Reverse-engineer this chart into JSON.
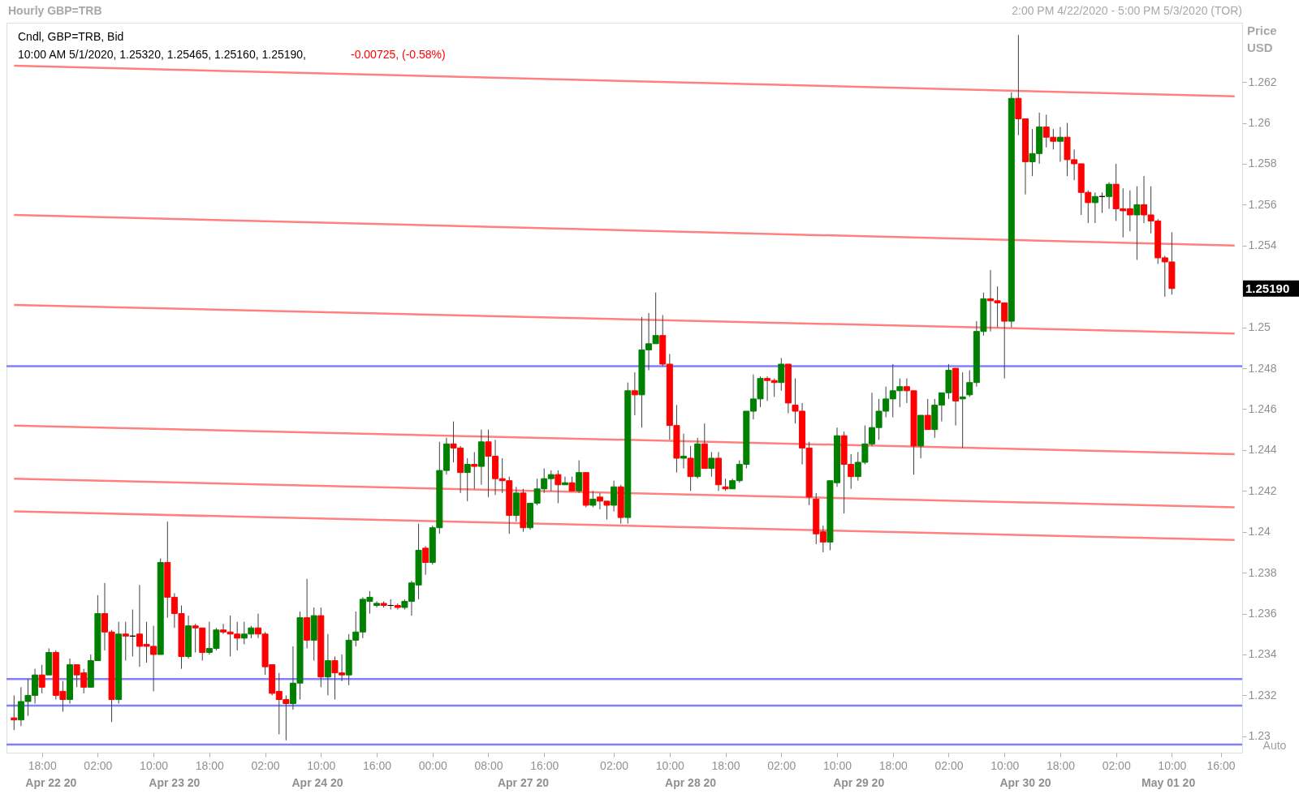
{
  "chart_data": {
    "type": "candlestick",
    "title": "Hourly GBP=TRB",
    "subtitle": "2:00 PM 4/22/2020 - 5:00 PM 5/3/2020 (TOR)",
    "ylabel": "Price USD",
    "categories": [
      null,
      null,
      null,
      null,
      "18:00",
      null,
      null,
      null,
      null,
      null,
      null,
      null,
      "02:00",
      null,
      null,
      null,
      null,
      null,
      null,
      null,
      "10:00",
      null,
      null,
      null,
      null,
      null,
      null,
      null,
      "18:00",
      null,
      null,
      null,
      null,
      null,
      null,
      null,
      "02:00",
      null,
      null,
      null,
      null,
      null,
      null,
      null,
      "10:00",
      null,
      null,
      null,
      null,
      null,
      null,
      null,
      "16:00",
      null,
      null,
      null,
      null,
      null,
      null,
      null,
      "00:00",
      null,
      null,
      null,
      null,
      null,
      null,
      null,
      "08:00",
      null,
      null,
      null,
      null,
      null,
      null,
      null,
      "16:00",
      null,
      null,
      null,
      null,
      null,
      null,
      null,
      null,
      null,
      "02:00",
      null,
      null,
      null,
      null,
      null,
      null,
      null,
      "10:00",
      null,
      null,
      null,
      null,
      null,
      null,
      null,
      "18:00",
      null,
      null,
      null,
      null,
      null,
      null,
      null,
      "02:00",
      null,
      null,
      null,
      null,
      null,
      null,
      null,
      "10:00",
      null,
      null,
      null,
      null,
      null,
      null,
      null,
      "18:00",
      null,
      null,
      null,
      null,
      null,
      null,
      null,
      "02:00",
      null,
      null,
      null,
      null,
      null,
      null,
      null,
      "10:00",
      null,
      null,
      null,
      null,
      null,
      null,
      null,
      "18:00",
      null,
      null,
      null,
      null,
      null,
      null,
      null,
      "02:00",
      null,
      null,
      null,
      null,
      null,
      null,
      null,
      "10:00",
      null,
      null,
      null,
      null,
      null,
      null,
      "16:00",
      null,
      null
    ],
    "ohlc": [
      [
        1.2309,
        1.232,
        1.2303,
        1.2308
      ],
      [
        1.2308,
        1.2324,
        1.2305,
        1.2317
      ],
      [
        1.2317,
        1.2328,
        1.231,
        1.232
      ],
      [
        1.232,
        1.2333,
        1.2316,
        1.233
      ],
      [
        1.233,
        1.2335,
        1.2321,
        1.2324
      ],
      [
        1.233,
        1.2343,
        1.233,
        1.2341
      ],
      [
        1.2341,
        1.2342,
        1.2318,
        1.232
      ],
      [
        1.2322,
        1.2327,
        1.2312,
        1.2318
      ],
      [
        1.2318,
        1.2338,
        1.2316,
        1.2335
      ],
      [
        1.2335,
        1.2335,
        1.2324,
        1.233
      ],
      [
        1.2331,
        1.2333,
        1.2321,
        1.2324
      ],
      [
        1.2324,
        1.234,
        1.2324,
        1.2337
      ],
      [
        1.2337,
        1.2369,
        1.2337,
        1.236
      ],
      [
        1.236,
        1.2375,
        1.2342,
        1.2351
      ],
      [
        1.2351,
        1.2352,
        1.2307,
        1.2318
      ],
      [
        1.2318,
        1.2356,
        1.2316,
        1.235
      ],
      [
        1.235,
        1.2356,
        1.2337,
        1.2349
      ],
      [
        1.2349,
        1.2362,
        1.2339,
        1.2349
      ],
      [
        1.235,
        1.2374,
        1.2334,
        1.2344
      ],
      [
        1.2345,
        1.2356,
        1.2336,
        1.2344
      ],
      [
        1.2344,
        1.2354,
        1.2322,
        1.234
      ],
      [
        1.234,
        1.2387,
        1.234,
        1.2385
      ],
      [
        1.2385,
        1.2405,
        1.2358,
        1.2368
      ],
      [
        1.2368,
        1.237,
        1.2353,
        1.236
      ],
      [
        1.236,
        1.2364,
        1.2333,
        1.2339
      ],
      [
        1.2339,
        1.2359,
        1.2338,
        1.2354
      ],
      [
        1.2354,
        1.2355,
        1.2341,
        1.2353
      ],
      [
        1.2353,
        1.2353,
        1.2337,
        1.2341
      ],
      [
        1.2341,
        1.2356,
        1.234,
        1.2343
      ],
      [
        1.2343,
        1.2353,
        1.2342,
        1.2352
      ],
      [
        1.2352,
        1.2355,
        1.235,
        1.2351
      ],
      [
        1.2351,
        1.2359,
        1.2339,
        1.235
      ],
      [
        1.235,
        1.2356,
        1.2342,
        1.2348
      ],
      [
        1.2348,
        1.2356,
        1.2345,
        1.235
      ],
      [
        1.235,
        1.2354,
        1.2348,
        1.2353
      ],
      [
        1.2353,
        1.236,
        1.2348,
        1.235
      ],
      [
        1.235,
        1.2351,
        1.233,
        1.2334
      ],
      [
        1.2335,
        1.2335,
        1.232,
        1.2321
      ],
      [
        1.2322,
        1.2331,
        1.2301,
        1.2318
      ],
      [
        1.2318,
        1.232,
        1.2298,
        1.2316
      ],
      [
        1.2316,
        1.2344,
        1.2313,
        1.2326
      ],
      [
        1.2326,
        1.2361,
        1.2318,
        1.2358
      ],
      [
        1.2358,
        1.2377,
        1.2343,
        1.2347
      ],
      [
        1.2347,
        1.2363,
        1.2337,
        1.2359
      ],
      [
        1.2359,
        1.2363,
        1.2324,
        1.2329
      ],
      [
        1.2329,
        1.235,
        1.232,
        1.2337
      ],
      [
        1.2337,
        1.2339,
        1.2318,
        1.2331
      ],
      [
        1.2331,
        1.234,
        1.2327,
        1.233
      ],
      [
        1.233,
        1.235,
        1.2325,
        1.2347
      ],
      [
        1.2347,
        1.2361,
        1.2344,
        1.2351
      ],
      [
        1.2351,
        1.2368,
        1.2348,
        1.2367
      ],
      [
        1.2366,
        1.2371,
        1.236,
        1.2368
      ],
      [
        1.2364,
        1.2366,
        1.2363,
        1.2365
      ],
      [
        1.2365,
        1.2366,
        1.2363,
        1.2364
      ],
      [
        1.2364,
        1.2367,
        1.2362,
        1.2364
      ],
      [
        1.2364,
        1.2365,
        1.2362,
        1.2363
      ],
      [
        1.2363,
        1.2367,
        1.2362,
        1.2366
      ],
      [
        1.2366,
        1.2376,
        1.2359,
        1.2375
      ],
      [
        1.2374,
        1.2404,
        1.2367,
        1.2391
      ],
      [
        1.2392,
        1.2393,
        1.2379,
        1.2385
      ],
      [
        1.2385,
        1.2403,
        1.2384,
        1.2402
      ],
      [
        1.2402,
        1.2444,
        1.2399,
        1.243
      ],
      [
        1.243,
        1.2446,
        1.2428,
        1.2443
      ],
      [
        1.2443,
        1.2454,
        1.2434,
        1.2441
      ],
      [
        1.2441,
        1.2442,
        1.2419,
        1.2429
      ],
      [
        1.2429,
        1.2436,
        1.2415,
        1.2433
      ],
      [
        1.2433,
        1.2439,
        1.2421,
        1.2432
      ],
      [
        1.2432,
        1.245,
        1.2423,
        1.2444
      ],
      [
        1.2444,
        1.245,
        1.2417,
        1.2437
      ],
      [
        1.2437,
        1.2445,
        1.2418,
        1.2426
      ],
      [
        1.2426,
        1.2436,
        1.2419,
        1.2425
      ],
      [
        1.2425,
        1.2427,
        1.2399,
        1.2408
      ],
      [
        1.2408,
        1.2422,
        1.2405,
        1.2419
      ],
      [
        1.2419,
        1.2421,
        1.24,
        1.2402
      ],
      [
        1.2402,
        1.2414,
        1.2401,
        1.2414
      ],
      [
        1.2414,
        1.2426,
        1.2413,
        1.2421
      ],
      [
        1.2421,
        1.2431,
        1.2419,
        1.2426
      ],
      [
        1.2426,
        1.243,
        1.242,
        1.2428
      ],
      [
        1.2428,
        1.243,
        1.2414,
        1.2423
      ],
      [
        1.2423,
        1.2427,
        1.2423,
        1.2424
      ],
      [
        1.2424,
        1.2427,
        1.242,
        1.242
      ],
      [
        1.242,
        1.2435,
        1.2419,
        1.2429
      ],
      [
        1.2429,
        1.2429,
        1.2412,
        1.2413
      ],
      [
        1.2413,
        1.242,
        1.2412,
        1.2416
      ],
      [
        1.2417,
        1.2419,
        1.2411,
        1.2415
      ],
      [
        1.2415,
        1.2415,
        1.2406,
        1.2413
      ],
      [
        1.2413,
        1.2425,
        1.241,
        1.2422
      ],
      [
        1.2422,
        1.2423,
        1.2404,
        1.2407
      ],
      [
        1.2407,
        1.2473,
        1.2404,
        1.2469
      ],
      [
        1.2469,
        1.2478,
        1.2457,
        1.2467
      ],
      [
        1.2467,
        1.2505,
        1.2451,
        1.2489
      ],
      [
        1.2489,
        1.2507,
        1.2479,
        1.2492
      ],
      [
        1.2492,
        1.2517,
        1.2492,
        1.2496
      ],
      [
        1.2496,
        1.2506,
        1.2481,
        1.2482
      ],
      [
        1.2482,
        1.2487,
        1.2445,
        1.2452
      ],
      [
        1.2452,
        1.2462,
        1.2429,
        1.2436
      ],
      [
        1.2436,
        1.2448,
        1.2431,
        1.2437
      ],
      [
        1.2436,
        1.2442,
        1.242,
        1.2427
      ],
      [
        1.2427,
        1.2446,
        1.2426,
        1.2443
      ],
      [
        1.2443,
        1.2453,
        1.2431,
        1.2431
      ],
      [
        1.2431,
        1.2439,
        1.2427,
        1.2436
      ],
      [
        1.2436,
        1.2439,
        1.242,
        1.2423
      ],
      [
        1.2422,
        1.2426,
        1.242,
        1.2421
      ],
      [
        1.2421,
        1.2426,
        1.2421,
        1.2425
      ],
      [
        1.2425,
        1.2435,
        1.2424,
        1.2433
      ],
      [
        1.2433,
        1.2459,
        1.2431,
        1.2459
      ],
      [
        1.2459,
        1.2477,
        1.2455,
        1.2465
      ],
      [
        1.2465,
        1.2476,
        1.2461,
        1.2475
      ],
      [
        1.2475,
        1.2476,
        1.2464,
        1.2474
      ],
      [
        1.2474,
        1.2475,
        1.2466,
        1.2473
      ],
      [
        1.2473,
        1.2485,
        1.2469,
        1.2482
      ],
      [
        1.2482,
        1.2482,
        1.2458,
        1.2463
      ],
      [
        1.2462,
        1.2475,
        1.2453,
        1.2459
      ],
      [
        1.2459,
        1.2463,
        1.2433,
        1.2441
      ],
      [
        1.2441,
        1.2444,
        1.2413,
        1.2417
      ],
      [
        1.2416,
        1.2419,
        1.2394,
        1.2399
      ],
      [
        1.24,
        1.2403,
        1.239,
        1.2395
      ],
      [
        1.2395,
        1.2425,
        1.2391,
        1.2425
      ],
      [
        1.2424,
        1.2451,
        1.2422,
        1.2447
      ],
      [
        1.2447,
        1.2449,
        1.2409,
        1.2433
      ],
      [
        1.2433,
        1.2438,
        1.2421,
        1.2427
      ],
      [
        1.2427,
        1.2439,
        1.2425,
        1.2434
      ],
      [
        1.2434,
        1.2452,
        1.2433,
        1.2443
      ],
      [
        1.2443,
        1.2468,
        1.2442,
        1.2451
      ],
      [
        1.2451,
        1.2465,
        1.2445,
        1.2459
      ],
      [
        1.2459,
        1.2471,
        1.2456,
        1.2465
      ],
      [
        1.2465,
        1.2482,
        1.2456,
        1.2469
      ],
      [
        1.2469,
        1.2475,
        1.2461,
        1.2471
      ],
      [
        1.2471,
        1.2475,
        1.2463,
        1.2469
      ],
      [
        1.2469,
        1.2469,
        1.2428,
        1.2442
      ],
      [
        1.2442,
        1.2457,
        1.2436,
        1.2457
      ],
      [
        1.2457,
        1.2465,
        1.245,
        1.245
      ],
      [
        1.245,
        1.2465,
        1.2446,
        1.2462
      ],
      [
        1.2462,
        1.2468,
        1.2454,
        1.2468
      ],
      [
        1.2468,
        1.2482,
        1.2465,
        1.2479
      ],
      [
        1.248,
        1.248,
        1.2452,
        1.2464
      ],
      [
        1.2465,
        1.2478,
        1.2441,
        1.2466
      ],
      [
        1.2467,
        1.2479,
        1.2466,
        1.2473
      ],
      [
        1.2473,
        1.2503,
        1.2471,
        1.2498
      ],
      [
        1.2498,
        1.2517,
        1.2496,
        1.2514
      ],
      [
        1.2514,
        1.2528,
        1.2498,
        1.2513
      ],
      [
        1.2513,
        1.252,
        1.25,
        1.2512
      ],
      [
        1.2512,
        1.2512,
        1.2475,
        1.2503
      ],
      [
        1.2503,
        1.2615,
        1.25,
        1.2612
      ],
      [
        1.2612,
        1.2643,
        1.2594,
        1.2602
      ],
      [
        1.2602,
        1.2602,
        1.2565,
        1.2581
      ],
      [
        1.2581,
        1.2597,
        1.2574,
        1.2585
      ],
      [
        1.2585,
        1.2605,
        1.258,
        1.2598
      ],
      [
        1.2598,
        1.2604,
        1.2588,
        1.2593
      ],
      [
        1.2593,
        1.2597,
        1.2587,
        1.2591
      ],
      [
        1.2591,
        1.2598,
        1.2581,
        1.2593
      ],
      [
        1.2593,
        1.26,
        1.2574,
        1.2582
      ],
      [
        1.2582,
        1.2587,
        1.2572,
        1.258
      ],
      [
        1.258,
        1.258,
        1.2555,
        1.2566
      ],
      [
        1.2566,
        1.2567,
        1.2551,
        1.2561
      ],
      [
        1.2561,
        1.2566,
        1.2551,
        1.2564
      ],
      [
        1.2564,
        1.2566,
        1.2556,
        1.2564
      ],
      [
        1.2564,
        1.2571,
        1.2558,
        1.257
      ],
      [
        1.257,
        1.258,
        1.2552,
        1.2558
      ],
      [
        1.2558,
        1.2568,
        1.2544,
        1.2557
      ],
      [
        1.2558,
        1.2567,
        1.2547,
        1.2555
      ],
      [
        1.2555,
        1.2569,
        1.2533,
        1.256
      ],
      [
        1.256,
        1.2574,
        1.2551,
        1.2555
      ],
      [
        1.2555,
        1.2569,
        1.2546,
        1.2552
      ],
      [
        1.2552,
        1.2553,
        1.2531,
        1.2534
      ],
      [
        1.2534,
        1.2535,
        1.2515,
        1.2532
      ],
      [
        1.2532,
        1.25465,
        1.2516,
        1.2519
      ],
      null,
      null,
      null,
      null,
      null,
      null,
      null,
      null,
      null
    ],
    "colors": [
      "#ff0000",
      "#008000",
      "#008000",
      "#008000",
      "#ff0000",
      "#008000",
      "#ff0000",
      "#ff0000",
      "#008000",
      "#ff0000",
      "#ff0000",
      "#008000",
      "#008000",
      "#ff0000",
      "#ff0000",
      "#008000",
      "#ff0000",
      "#000000",
      "#ff0000",
      "#ff0000",
      "#ff0000",
      "#008000",
      "#ff0000",
      "#ff0000",
      "#ff0000",
      "#008000",
      "#ff0000",
      "#ff0000",
      "#008000",
      "#008000",
      "#ff0000",
      "#ff0000",
      "#ff0000",
      "#008000",
      "#008000",
      "#ff0000",
      "#ff0000",
      "#ff0000",
      "#ff0000",
      "#ff0000",
      "#008000",
      "#008000",
      "#ff0000",
      "#008000",
      "#ff0000",
      "#008000",
      "#ff0000",
      "#ff0000",
      "#008000",
      "#008000",
      "#008000",
      "#008000",
      "#008000",
      "#ff0000",
      "#000000",
      "#ff0000",
      "#008000",
      "#008000",
      "#008000",
      "#ff0000",
      "#008000",
      "#008000",
      "#008000",
      "#ff0000",
      "#ff0000",
      "#008000",
      "#ff0000",
      "#008000",
      "#ff0000",
      "#ff0000",
      "#ff0000",
      "#ff0000",
      "#008000",
      "#ff0000",
      "#008000",
      "#008000",
      "#008000",
      "#008000",
      "#ff0000",
      "#008000",
      "#ff0000",
      "#008000",
      "#ff0000",
      "#008000",
      "#ff0000",
      "#ff0000",
      "#008000",
      "#ff0000",
      "#008000",
      "#ff0000",
      "#008000",
      "#008000",
      "#008000",
      "#ff0000",
      "#ff0000",
      "#ff0000",
      "#008000",
      "#ff0000",
      "#008000",
      "#ff0000",
      "#008000",
      "#ff0000",
      "#ff0000",
      "#008000",
      "#008000",
      "#008000",
      "#008000",
      "#008000",
      "#ff0000",
      "#ff0000",
      "#008000",
      "#ff0000",
      "#ff0000",
      "#ff0000",
      "#ff0000",
      "#ff0000",
      "#ff0000",
      "#008000",
      "#008000",
      "#ff0000",
      "#ff0000",
      "#008000",
      "#008000",
      "#008000",
      "#008000",
      "#008000",
      "#008000",
      "#008000",
      "#ff0000",
      "#ff0000",
      "#008000",
      "#ff0000",
      "#008000",
      "#008000",
      "#008000",
      "#ff0000",
      "#008000",
      "#008000",
      "#008000",
      "#008000",
      "#ff0000",
      "#ff0000",
      "#ff0000",
      "#008000",
      "#ff0000",
      "#ff0000",
      "#008000",
      "#008000",
      "#ff0000",
      "#ff0000",
      "#008000",
      "#ff0000",
      "#ff0000",
      "#ff0000",
      "#ff0000",
      "#008000",
      "#000000",
      "#008000",
      "#ff0000",
      "#ff0000",
      "#ff0000",
      "#008000",
      "#ff0000",
      "#ff0000",
      "#ff0000",
      "#ff0000",
      "#ff0000",
      null,
      null,
      null,
      null,
      null,
      null,
      null,
      null,
      null
    ],
    "series": [
      {
        "type": "line",
        "color": "#ff8080",
        "values": [
          1.2628,
          null,
          null,
          null,
          null,
          null,
          null,
          null,
          null,
          null,
          null,
          null,
          null,
          null,
          null,
          null,
          null,
          null,
          null,
          null,
          null,
          null,
          null,
          null,
          null,
          null,
          null,
          null,
          null,
          null,
          null,
          null,
          null,
          null,
          null,
          null,
          null,
          null,
          null,
          null,
          null,
          null,
          null,
          null,
          null,
          null,
          null,
          null,
          null,
          null,
          null,
          null,
          null,
          null,
          null,
          null,
          null,
          null,
          null,
          null,
          null,
          null,
          null,
          null,
          null,
          null,
          null,
          null,
          null,
          null,
          null,
          null,
          null,
          null,
          null,
          null,
          null,
          null,
          null,
          null,
          null,
          null,
          null,
          null,
          null,
          null,
          null,
          null,
          null,
          null,
          null,
          null,
          null,
          null,
          null,
          null,
          null,
          null,
          null,
          null,
          null,
          null,
          null,
          null,
          null,
          null,
          null,
          null,
          null,
          null,
          null,
          null,
          null,
          null,
          null,
          null,
          null,
          null,
          null,
          null,
          null,
          null,
          null,
          null,
          null,
          null,
          null,
          null,
          null,
          null,
          null,
          null,
          null,
          null,
          null,
          null,
          null,
          null,
          null,
          null,
          null,
          null,
          null,
          null,
          null,
          null,
          null,
          null,
          null,
          null,
          null,
          null,
          null,
          null,
          null,
          null,
          null,
          null,
          null,
          null,
          null,
          null,
          null,
          null,
          null,
          null,
          null,
          null,
          null,
          null,
          null,
          null,
          null,
          null,
          null,
          1.2613
        ]
      },
      {
        "type": "line",
        "color": "#ff8080",
        "values": [
          1.2555,
          null,
          null,
          null,
          null,
          null,
          null,
          null,
          null,
          null,
          null,
          null,
          null,
          null,
          null,
          null,
          null,
          null,
          null,
          null,
          null,
          null,
          null,
          null,
          null,
          null,
          null,
          null,
          null,
          null,
          null,
          null,
          null,
          null,
          null,
          null,
          null,
          null,
          null,
          null,
          null,
          null,
          null,
          null,
          null,
          null,
          null,
          null,
          null,
          null,
          null,
          null,
          null,
          null,
          null,
          null,
          null,
          null,
          null,
          null,
          null,
          null,
          null,
          null,
          null,
          null,
          null,
          null,
          null,
          null,
          null,
          null,
          null,
          null,
          null,
          null,
          null,
          null,
          null,
          null,
          null,
          null,
          null,
          null,
          null,
          null,
          null,
          null,
          null,
          null,
          null,
          null,
          null,
          null,
          null,
          null,
          null,
          null,
          null,
          null,
          null,
          null,
          null,
          null,
          null,
          null,
          null,
          null,
          null,
          null,
          null,
          null,
          null,
          null,
          null,
          null,
          null,
          null,
          null,
          null,
          null,
          null,
          null,
          null,
          null,
          null,
          null,
          null,
          null,
          null,
          null,
          null,
          null,
          null,
          null,
          null,
          null,
          null,
          null,
          null,
          null,
          null,
          null,
          null,
          null,
          null,
          null,
          null,
          null,
          null,
          null,
          null,
          null,
          null,
          null,
          null,
          null,
          null,
          null,
          null,
          null,
          null,
          null,
          null,
          null,
          null,
          null,
          null,
          null,
          null,
          null,
          null,
          null,
          null,
          null,
          1.254
        ]
      },
      {
        "type": "line",
        "color": "#ff8080",
        "values": [
          1.2511,
          null,
          null,
          null,
          null,
          null,
          null,
          null,
          null,
          null,
          null,
          null,
          null,
          null,
          null,
          null,
          null,
          null,
          null,
          null,
          null,
          null,
          null,
          null,
          null,
          null,
          null,
          null,
          null,
          null,
          null,
          null,
          null,
          null,
          null,
          null,
          null,
          null,
          null,
          null,
          null,
          null,
          null,
          null,
          null,
          null,
          null,
          null,
          null,
          null,
          null,
          null,
          null,
          null,
          null,
          null,
          null,
          null,
          null,
          null,
          null,
          null,
          null,
          null,
          null,
          null,
          null,
          null,
          null,
          null,
          null,
          null,
          null,
          null,
          null,
          null,
          null,
          null,
          null,
          null,
          null,
          null,
          null,
          null,
          null,
          null,
          null,
          null,
          null,
          null,
          null,
          null,
          null,
          null,
          null,
          null,
          null,
          null,
          null,
          null,
          null,
          null,
          null,
          null,
          null,
          null,
          null,
          null,
          null,
          null,
          null,
          null,
          null,
          null,
          null,
          null,
          null,
          null,
          null,
          null,
          null,
          null,
          null,
          null,
          null,
          null,
          null,
          null,
          null,
          null,
          null,
          null,
          null,
          null,
          null,
          null,
          null,
          null,
          null,
          null,
          null,
          null,
          null,
          null,
          null,
          null,
          null,
          null,
          null,
          null,
          null,
          null,
          null,
          null,
          null,
          null,
          null,
          null,
          null,
          null,
          null,
          null,
          null,
          null,
          null,
          null,
          null,
          null,
          null,
          null,
          null,
          null,
          null,
          null,
          null,
          1.2497
        ]
      },
      {
        "type": "line",
        "color": "#ff8080",
        "values": [
          1.2452,
          null,
          null,
          null,
          null,
          null,
          null,
          null,
          null,
          null,
          null,
          null,
          null,
          null,
          null,
          null,
          null,
          null,
          null,
          null,
          null,
          null,
          null,
          null,
          null,
          null,
          null,
          null,
          null,
          null,
          null,
          null,
          null,
          null,
          null,
          null,
          null,
          null,
          null,
          null,
          null,
          null,
          null,
          null,
          null,
          null,
          null,
          null,
          null,
          null,
          null,
          null,
          null,
          null,
          null,
          null,
          null,
          null,
          null,
          null,
          null,
          null,
          null,
          null,
          null,
          null,
          null,
          null,
          null,
          null,
          null,
          null,
          null,
          null,
          null,
          null,
          null,
          null,
          null,
          null,
          null,
          null,
          null,
          null,
          null,
          null,
          null,
          null,
          null,
          null,
          null,
          null,
          null,
          null,
          null,
          null,
          null,
          null,
          null,
          null,
          null,
          null,
          null,
          null,
          null,
          null,
          null,
          null,
          null,
          null,
          null,
          null,
          null,
          null,
          null,
          null,
          null,
          null,
          null,
          null,
          null,
          null,
          null,
          null,
          null,
          null,
          null,
          null,
          null,
          null,
          null,
          null,
          null,
          null,
          null,
          null,
          null,
          null,
          null,
          null,
          null,
          null,
          null,
          null,
          null,
          null,
          null,
          null,
          null,
          null,
          null,
          null,
          null,
          null,
          null,
          null,
          null,
          null,
          null,
          null,
          null,
          null,
          null,
          null,
          null,
          null,
          null,
          null,
          null,
          null,
          null,
          null,
          null,
          null,
          null,
          1.2438
        ]
      },
      {
        "type": "line",
        "color": "#ff8080",
        "values": [
          1.2426,
          null,
          null,
          null,
          null,
          null,
          null,
          null,
          null,
          null,
          null,
          null,
          null,
          null,
          null,
          null,
          null,
          null,
          null,
          null,
          null,
          null,
          null,
          null,
          null,
          null,
          null,
          null,
          null,
          null,
          null,
          null,
          null,
          null,
          null,
          null,
          null,
          null,
          null,
          null,
          null,
          null,
          null,
          null,
          null,
          null,
          null,
          null,
          null,
          null,
          null,
          null,
          null,
          null,
          null,
          null,
          null,
          null,
          null,
          null,
          null,
          null,
          null,
          null,
          null,
          null,
          null,
          null,
          null,
          null,
          null,
          null,
          null,
          null,
          null,
          null,
          null,
          null,
          null,
          null,
          null,
          null,
          null,
          null,
          null,
          null,
          null,
          null,
          null,
          null,
          null,
          null,
          null,
          null,
          null,
          null,
          null,
          null,
          null,
          null,
          null,
          null,
          null,
          null,
          null,
          null,
          null,
          null,
          null,
          null,
          null,
          null,
          null,
          null,
          null,
          null,
          null,
          null,
          null,
          null,
          null,
          null,
          null,
          null,
          null,
          null,
          null,
          null,
          null,
          null,
          null,
          null,
          null,
          null,
          null,
          null,
          null,
          null,
          null,
          null,
          null,
          null,
          null,
          null,
          null,
          null,
          null,
          null,
          null,
          null,
          null,
          null,
          null,
          null,
          null,
          null,
          null,
          null,
          null,
          null,
          null,
          null,
          null,
          null,
          null,
          null,
          null,
          null,
          null,
          null,
          null,
          null,
          null,
          null,
          null,
          1.2412
        ]
      },
      {
        "type": "line",
        "color": "#ff8080",
        "values": [
          1.241,
          null,
          null,
          null,
          null,
          null,
          null,
          null,
          null,
          null,
          null,
          null,
          null,
          null,
          null,
          null,
          null,
          null,
          null,
          null,
          null,
          null,
          null,
          null,
          null,
          null,
          null,
          null,
          null,
          null,
          null,
          null,
          null,
          null,
          null,
          null,
          null,
          null,
          null,
          null,
          null,
          null,
          null,
          null,
          null,
          null,
          null,
          null,
          null,
          null,
          null,
          null,
          null,
          null,
          null,
          null,
          null,
          null,
          null,
          null,
          null,
          null,
          null,
          null,
          null,
          null,
          null,
          null,
          null,
          null,
          null,
          null,
          null,
          null,
          null,
          null,
          null,
          null,
          null,
          null,
          null,
          null,
          null,
          null,
          null,
          null,
          null,
          null,
          null,
          null,
          null,
          null,
          null,
          null,
          null,
          null,
          null,
          null,
          null,
          null,
          null,
          null,
          null,
          null,
          null,
          null,
          null,
          null,
          null,
          null,
          null,
          null,
          null,
          null,
          null,
          null,
          null,
          null,
          null,
          null,
          null,
          null,
          null,
          null,
          null,
          null,
          null,
          null,
          null,
          null,
          null,
          null,
          null,
          null,
          null,
          null,
          null,
          null,
          null,
          null,
          null,
          null,
          null,
          null,
          null,
          null,
          null,
          null,
          null,
          null,
          null,
          null,
          null,
          null,
          null,
          null,
          null,
          null,
          null,
          null,
          null,
          null,
          null,
          null,
          null,
          null,
          null,
          null,
          null,
          null,
          null,
          null,
          null,
          null,
          null,
          1.2396
        ]
      }
    ],
    "ref_lines": [
      {
        "axis": "y",
        "value": 1.2481,
        "color": "#8080ff"
      },
      {
        "axis": "y",
        "value": 1.2328,
        "color": "#8080ff"
      },
      {
        "axis": "y",
        "value": 1.2315,
        "color": "#8080ff"
      },
      {
        "axis": "y",
        "value": 1.2296,
        "color": "#8080ff"
      }
    ],
    "ylim": [
      1.2292,
      1.2649
    ],
    "yticks": [
      1.23,
      1.232,
      1.234,
      1.236,
      1.238,
      1.24,
      1.242,
      1.244,
      1.246,
      1.248,
      1.25,
      {
        "value": 1.252,
        "label": null
      },
      1.254,
      1.256,
      1.258,
      1.26,
      1.262
    ],
    "annotations": [
      "Cndl, GBP=TRB, Bid",
      "10:00 AM 5/1/2020, 1.25320, 1.25465, 1.25160, 1.25190,",
      "-0.00725, (-0.58%)",
      "Auto",
      "1.25190",
      "Apr 22 20",
      "Apr 23 20",
      "Apr 24 20",
      "Apr 27 20",
      "Apr 28 20",
      "Apr 29 20",
      "Apr 30 20",
      "May 01 20"
    ],
    "grid": false
  }
}
